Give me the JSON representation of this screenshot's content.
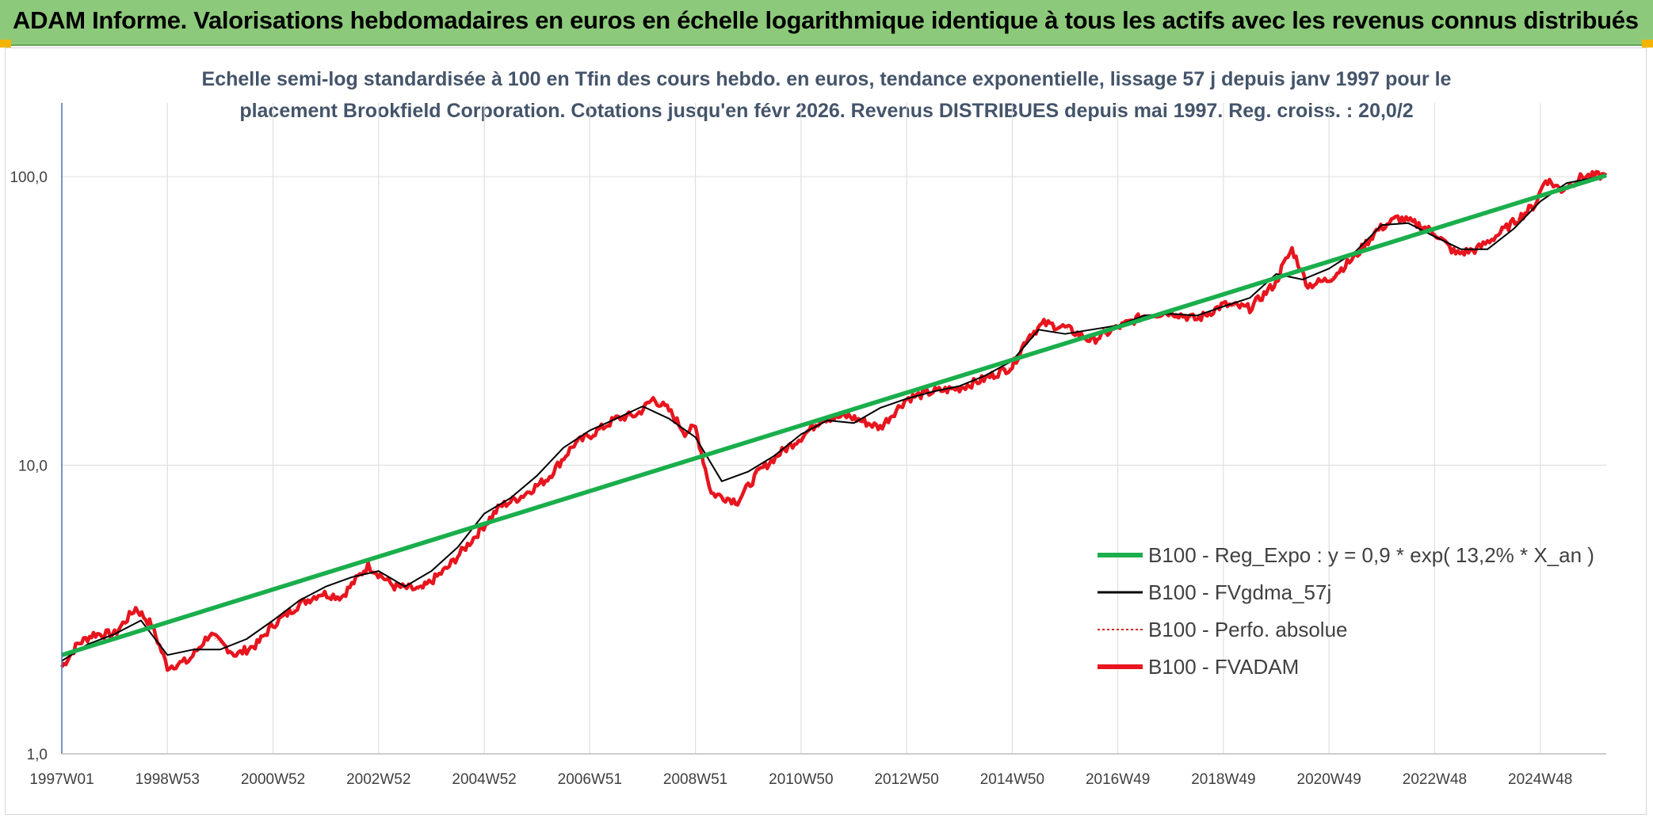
{
  "header": {
    "title": "ADAM Informe. Valorisations hebdomadaires en euros en échelle logarithmique identique à tous les actifs avec les revenus connus distribués"
  },
  "colors": {
    "banner": "#8cc97a",
    "regression": "#1aae4c",
    "smoothed": "#000000",
    "perfo": "#d62020",
    "fvadam": "#e8141e",
    "subtitle": "#44546a",
    "grid": "#e0e0e0"
  },
  "chart_data": {
    "type": "line",
    "subtitle_line1": "Echelle semi-log standardisée à 100 en Tfin des cours hebdo. en euros, tendance exponentielle, lissage 57 j depuis janv 1997 pour le",
    "subtitle_line2": "placement Brookfield Corporation. Cotations jusqu'en févr 2026. Revenus DISTRIBUES depuis mai 1997. Reg. croiss. : 20,0/2",
    "y_scale": "log",
    "ylim": [
      1,
      180
    ],
    "y_ticks": [
      {
        "value": 1,
        "label": "1,0"
      },
      {
        "value": 10,
        "label": "10,0"
      },
      {
        "value": 100,
        "label": "100,0"
      }
    ],
    "xlim": [
      1997.0,
      2026.25
    ],
    "x_ticks": [
      {
        "value": 1997.0,
        "label": "1997W01"
      },
      {
        "value": 1999.0,
        "label": "1998W53"
      },
      {
        "value": 2001.0,
        "label": "2000W52"
      },
      {
        "value": 2003.0,
        "label": "2002W52"
      },
      {
        "value": 2005.0,
        "label": "2004W52"
      },
      {
        "value": 2007.0,
        "label": "2006W51"
      },
      {
        "value": 2009.0,
        "label": "2008W51"
      },
      {
        "value": 2011.0,
        "label": "2010W50"
      },
      {
        "value": 2013.0,
        "label": "2012W50"
      },
      {
        "value": 2015.0,
        "label": "2014W50"
      },
      {
        "value": 2017.0,
        "label": "2016W49"
      },
      {
        "value": 2019.0,
        "label": "2018W49"
      },
      {
        "value": 2021.0,
        "label": "2020W49"
      },
      {
        "value": 2023.0,
        "label": "2022W48"
      },
      {
        "value": 2025.0,
        "label": "2024W48"
      }
    ],
    "grid": true,
    "legend_position": "bottom-right",
    "legend": [
      {
        "key": "regression",
        "label": "B100 - Reg_Expo : y = 0,9 * exp( 13,2% *  X_an )"
      },
      {
        "key": "smoothed",
        "label": "B100 - FVgdma_57j"
      },
      {
        "key": "perfo",
        "label": "B100 - Perfo. absolue"
      },
      {
        "key": "fvadam",
        "label": "B100 - FVADAM"
      }
    ],
    "series": [
      {
        "key": "regression",
        "x": [
          1997.0,
          2026.25
        ],
        "values": [
          2.2,
          101
        ]
      },
      {
        "key": "fvadam",
        "x": [
          1997.0,
          1997.3,
          1997.6,
          1998.0,
          1998.4,
          1998.7,
          1999.0,
          1999.4,
          1999.8,
          2000.3,
          2000.7,
          2001.0,
          2001.5,
          2001.9,
          2002.3,
          2002.8,
          2003.3,
          2003.8,
          2004.3,
          2004.8,
          2005.3,
          2005.7,
          2006.2,
          2006.7,
          2007.1,
          2007.5,
          2007.9,
          2008.2,
          2008.5,
          2008.8,
          2009.0,
          2009.3,
          2009.8,
          2010.2,
          2010.6,
          2011.0,
          2011.4,
          2011.9,
          2012.5,
          2013.0,
          2013.5,
          2014.0,
          2014.5,
          2015.0,
          2015.3,
          2015.6,
          2016.0,
          2016.5,
          2017.0,
          2017.5,
          2018.0,
          2018.5,
          2019.0,
          2019.5,
          2020.0,
          2020.1,
          2020.3,
          2020.6,
          2021.0,
          2021.5,
          2021.9,
          2022.3,
          2022.7,
          2023.0,
          2023.4,
          2023.8,
          2024.2,
          2024.6,
          2024.9,
          2025.1,
          2025.4,
          2025.8,
          2026.25
        ],
        "values": [
          2.0,
          2.4,
          2.6,
          2.6,
          3.2,
          2.8,
          2.0,
          2.1,
          2.6,
          2.2,
          2.4,
          2.8,
          3.3,
          3.6,
          3.5,
          4.5,
          3.8,
          3.7,
          4.4,
          5.6,
          7.2,
          7.8,
          9.0,
          11.8,
          13.0,
          14.5,
          15.0,
          17.0,
          15.5,
          13.0,
          13.5,
          8.0,
          7.5,
          9.5,
          11.0,
          12.5,
          14.5,
          14.8,
          13.5,
          17.0,
          18.0,
          18.5,
          20.0,
          22.0,
          28.0,
          31.0,
          30.0,
          27.0,
          30.0,
          33.0,
          34.0,
          32.0,
          36.0,
          35.0,
          43.0,
          48.0,
          56.0,
          42.0,
          44.0,
          53.0,
          65.0,
          72.0,
          68.0,
          64.0,
          54.0,
          56.0,
          63.0,
          72.0,
          80.0,
          98.0,
          90.0,
          100.0,
          101.0
        ]
      },
      {
        "key": "smoothed",
        "x": [
          1997.0,
          1997.5,
          1998.0,
          1998.5,
          1999.0,
          1999.5,
          2000.0,
          2000.5,
          2001.0,
          2001.5,
          2002.0,
          2002.5,
          2003.0,
          2003.5,
          2004.0,
          2004.5,
          2005.0,
          2005.5,
          2006.0,
          2006.5,
          2007.0,
          2007.5,
          2008.0,
          2008.5,
          2009.0,
          2009.5,
          2010.0,
          2010.5,
          2011.0,
          2011.5,
          2012.0,
          2012.5,
          2013.0,
          2013.5,
          2014.0,
          2014.5,
          2015.0,
          2015.5,
          2016.0,
          2016.5,
          2017.0,
          2017.5,
          2018.0,
          2018.5,
          2019.0,
          2019.5,
          2020.0,
          2020.5,
          2021.0,
          2021.5,
          2022.0,
          2022.5,
          2023.0,
          2023.5,
          2024.0,
          2024.5,
          2025.0,
          2025.5,
          2026.25
        ],
        "values": [
          2.1,
          2.4,
          2.6,
          2.9,
          2.2,
          2.3,
          2.3,
          2.5,
          2.9,
          3.4,
          3.8,
          4.1,
          4.3,
          3.8,
          4.3,
          5.2,
          6.8,
          7.7,
          9.2,
          11.5,
          13.2,
          14.5,
          16.0,
          14.5,
          12.5,
          8.8,
          9.5,
          10.8,
          12.8,
          14.3,
          14.0,
          15.8,
          17.0,
          18.0,
          18.8,
          20.5,
          23.0,
          29.5,
          28.5,
          29.5,
          30.5,
          33.0,
          33.5,
          33.0,
          35.5,
          38.0,
          46.0,
          44.0,
          48.0,
          55.0,
          68.0,
          69.0,
          62.0,
          56.0,
          56.0,
          66.0,
          82.0,
          95.0,
          101.0
        ]
      }
    ]
  }
}
